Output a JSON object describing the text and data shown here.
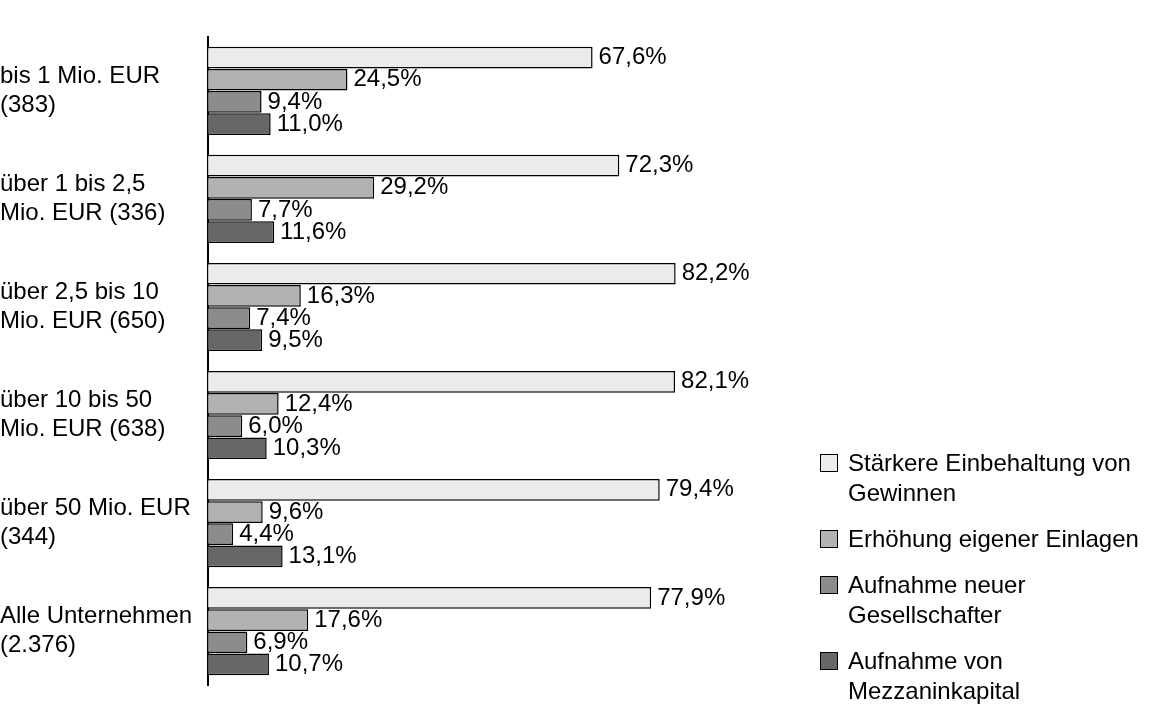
{
  "chart_data": {
    "type": "bar",
    "orientation": "horizontal",
    "tick_labels": "y",
    "legend": "right",
    "categories": [
      "bis 1 Mio. EUR (383)",
      "über 1 bis 2,5 Mio. EUR (336)",
      "über 2,5 bis 10 Mio. EUR (650)",
      "über 10 bis 50 Mio. EUR (638)",
      "über 50 Mio. EUR (344)",
      "Alle Unternehmen (2.376)"
    ],
    "series": [
      {
        "name": "Stärkere Einbehaltung von Gewinnen",
        "color": "#ebebeb",
        "values": [
          67.6,
          72.3,
          82.2,
          82.1,
          79.4,
          77.9
        ],
        "value_labels": [
          "67,6%",
          "72,3%",
          "82,2%",
          "82,1%",
          "79,4%",
          "77,9%"
        ]
      },
      {
        "name": "Erhöhung eigener Einlagen",
        "color": "#b2b2b2",
        "values": [
          24.5,
          29.2,
          16.3,
          12.4,
          9.6,
          17.6
        ],
        "value_labels": [
          "24,5%",
          "29,2%",
          "16,3%",
          "12,4%",
          "9,6%",
          "17,6%"
        ]
      },
      {
        "name": "Aufnahme neuer Gesellschafter",
        "color": "#8c8c8c",
        "values": [
          9.4,
          7.7,
          7.4,
          6.0,
          4.4,
          6.9
        ],
        "value_labels": [
          "9,4%",
          "7,7%",
          "7,4%",
          "6,0%",
          "4,4%",
          "6,9%"
        ]
      },
      {
        "name": "Aufnahme von Mezzaninkapital",
        "color": "#676767",
        "values": [
          11.0,
          11.6,
          9.5,
          10.3,
          13.1,
          10.7
        ],
        "value_labels": [
          "11,0%",
          "11,6%",
          "9,5%",
          "10,3%",
          "13,1%",
          "10,7%"
        ]
      }
    ]
  }
}
